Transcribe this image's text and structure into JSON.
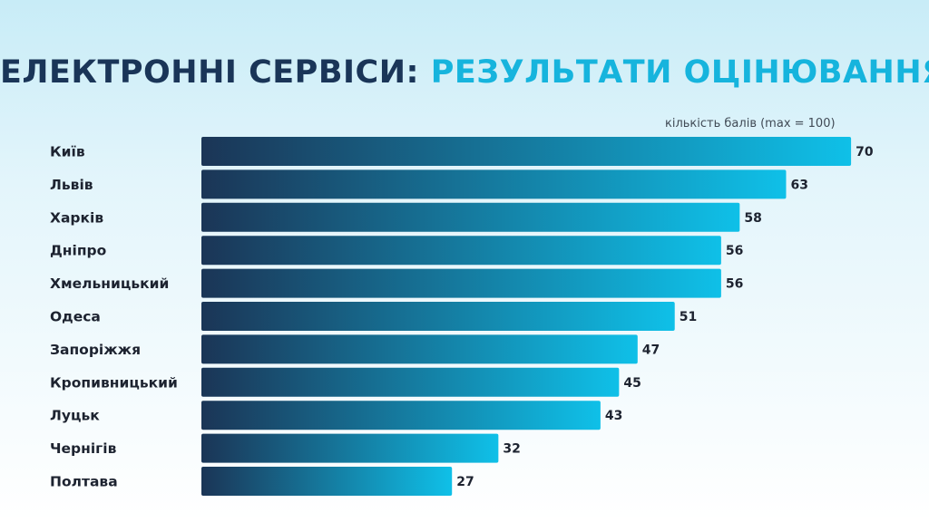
{
  "title_part1": "ЕЛЕКТРОННІ СЕРВІСИ:",
  "title_part2": "РЕЗУЛЬТАТИ ОЦІНЮВАННЯ",
  "units_label": "кількість балів (max = 100)",
  "colors": {
    "title_dark": "#1a3558",
    "title_accent": "#16b4dd",
    "bar_start": "#1b3556",
    "bar_end": "#0fc0e8",
    "text": "#1d2330"
  },
  "chart_data": {
    "type": "bar",
    "orientation": "horizontal",
    "title": "ЕЛЕКТРОННІ СЕРВІСИ: РЕЗУЛЬТАТИ ОЦІНЮВАННЯ",
    "xlabel": "кількість балів (max = 100)",
    "ylabel": "",
    "xlim": [
      0,
      100
    ],
    "grid": false,
    "categories": [
      "Київ",
      "Львів",
      "Харків",
      "Дніпро",
      "Хмельницький",
      "Одеса",
      "Запоріжжя",
      "Кропивницький",
      "Луцьк",
      "Чернігів",
      "Полтава"
    ],
    "values": [
      70,
      63,
      58,
      56,
      56,
      51,
      47,
      45,
      43,
      32,
      27
    ]
  }
}
